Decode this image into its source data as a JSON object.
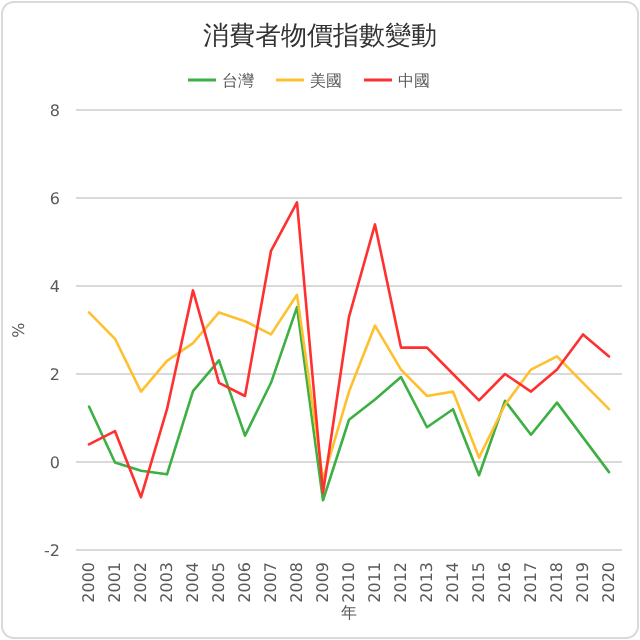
{
  "chart_data": {
    "type": "line",
    "title": "消費者物價指數變動",
    "xlabel": "年",
    "ylabel": "%",
    "categories": [
      "2000",
      "2001",
      "2002",
      "2003",
      "2004",
      "2005",
      "2006",
      "2007",
      "2008",
      "2009",
      "2010",
      "2011",
      "2012",
      "2013",
      "2014",
      "2015",
      "2016",
      "2017",
      "2018",
      "2019",
      "2020"
    ],
    "series": [
      {
        "name": "台灣",
        "color": "#3cb043",
        "values": [
          1.26,
          -0.01,
          -0.2,
          -0.28,
          1.61,
          2.31,
          0.6,
          1.8,
          3.52,
          -0.87,
          0.96,
          1.42,
          1.93,
          0.79,
          1.2,
          -0.3,
          1.39,
          0.62,
          1.35,
          0.56,
          -0.23
        ]
      },
      {
        "name": "美國",
        "color": "#ffc030",
        "values": [
          3.4,
          2.8,
          1.6,
          2.3,
          2.7,
          3.4,
          3.2,
          2.9,
          3.8,
          -0.4,
          1.6,
          3.1,
          2.1,
          1.5,
          1.6,
          0.1,
          1.3,
          2.1,
          2.4,
          1.8,
          1.2
        ]
      },
      {
        "name": "中國",
        "color": "#ff3030",
        "values": [
          0.4,
          0.7,
          -0.8,
          1.2,
          3.9,
          1.8,
          1.5,
          4.8,
          5.9,
          -0.7,
          3.3,
          5.4,
          2.6,
          2.6,
          2.0,
          1.4,
          2.0,
          1.6,
          2.1,
          2.9,
          2.4
        ]
      }
    ],
    "ylim": [
      -2,
      8
    ],
    "yticks": [
      -2,
      0,
      2,
      4,
      6,
      8
    ],
    "grid": "y",
    "legend": "top",
    "marker": "none",
    "line_style": "solid"
  }
}
